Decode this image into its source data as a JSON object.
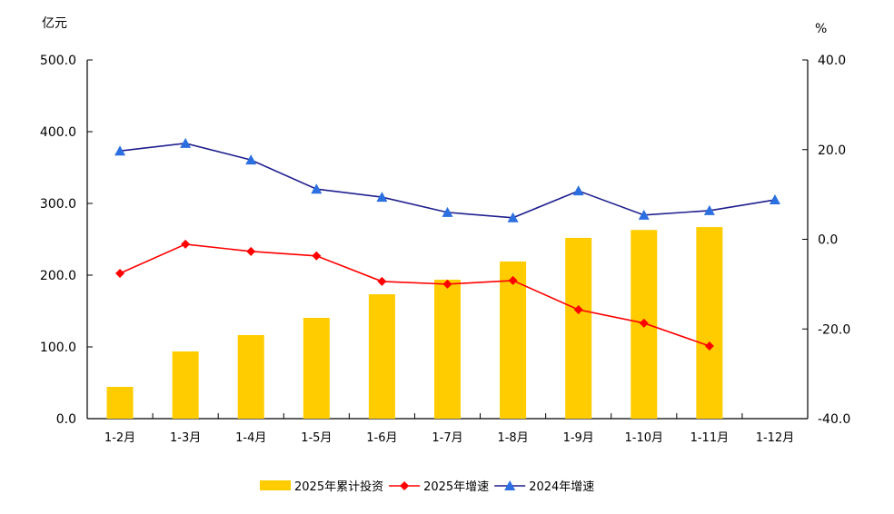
{
  "chart_data": {
    "type": "bar+line",
    "categories": [
      "1-2月",
      "1-3月",
      "1-4月",
      "1-5月",
      "1-6月",
      "1-7月",
      "1-8月",
      "1-9月",
      "1-10月",
      "1-11月",
      "1-12月"
    ],
    "left_axis": {
      "unit": "亿元",
      "ylim": [
        0,
        500
      ],
      "ticks": [
        "0.0",
        "100.0",
        "200.0",
        "300.0",
        "400.0",
        "500.0"
      ]
    },
    "right_axis": {
      "unit": "%",
      "ylim": [
        -40,
        40
      ],
      "ticks": [
        "-40.0",
        "-20.0",
        "0.0",
        "20.0",
        "40.0"
      ]
    },
    "grid": false,
    "legend_position": "bottom",
    "series": [
      {
        "name": "2025年累计投资",
        "type": "bar",
        "axis": "left",
        "color": "#FFCC00",
        "values": [
          44.3,
          93.7,
          116.5,
          140.5,
          173.4,
          193.7,
          219.0,
          252.0,
          263.0,
          267.0,
          null
        ]
      },
      {
        "name": "2025年增速",
        "type": "line",
        "axis": "right",
        "color": "#FF0000",
        "marker": "diamond",
        "values": [
          -7.6,
          -1.1,
          -2.7,
          -3.7,
          -9.4,
          -10.0,
          -9.2,
          -15.7,
          -18.7,
          -23.8,
          null
        ]
      },
      {
        "name": "2024年增速",
        "type": "line",
        "axis": "right",
        "color": "#1F1F8F",
        "marker_color": "#2B6FE0",
        "marker": "triangle",
        "values": [
          19.7,
          21.4,
          17.7,
          11.2,
          9.4,
          6.0,
          4.8,
          10.8,
          5.4,
          6.4,
          8.8
        ]
      }
    ]
  }
}
